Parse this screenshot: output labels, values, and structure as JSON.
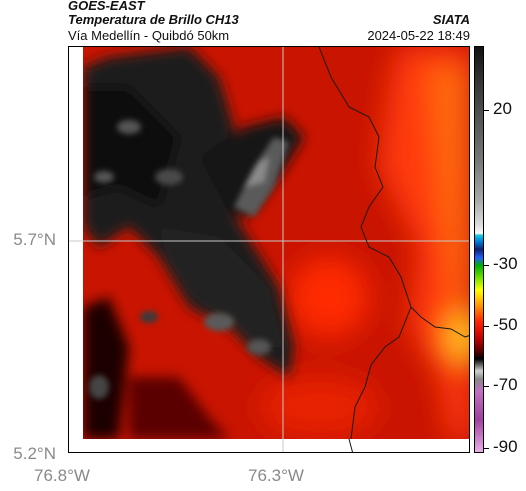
{
  "header": {
    "satellite": "GOES-EAST",
    "product": "Temperatura de Brillo CH13",
    "organization": "SIATA",
    "region": "Vía Medellín - Quibdó 50km",
    "timestamp": "2024-05-22 18:49"
  },
  "axes": {
    "lat_labels": [
      "5.7°N",
      "5.2°N"
    ],
    "lon_labels": [
      "76.8°W",
      "76.3°W"
    ]
  },
  "colorbar": {
    "labels": [
      "20",
      "-30",
      "-50",
      "-70",
      "-90"
    ]
  }
}
